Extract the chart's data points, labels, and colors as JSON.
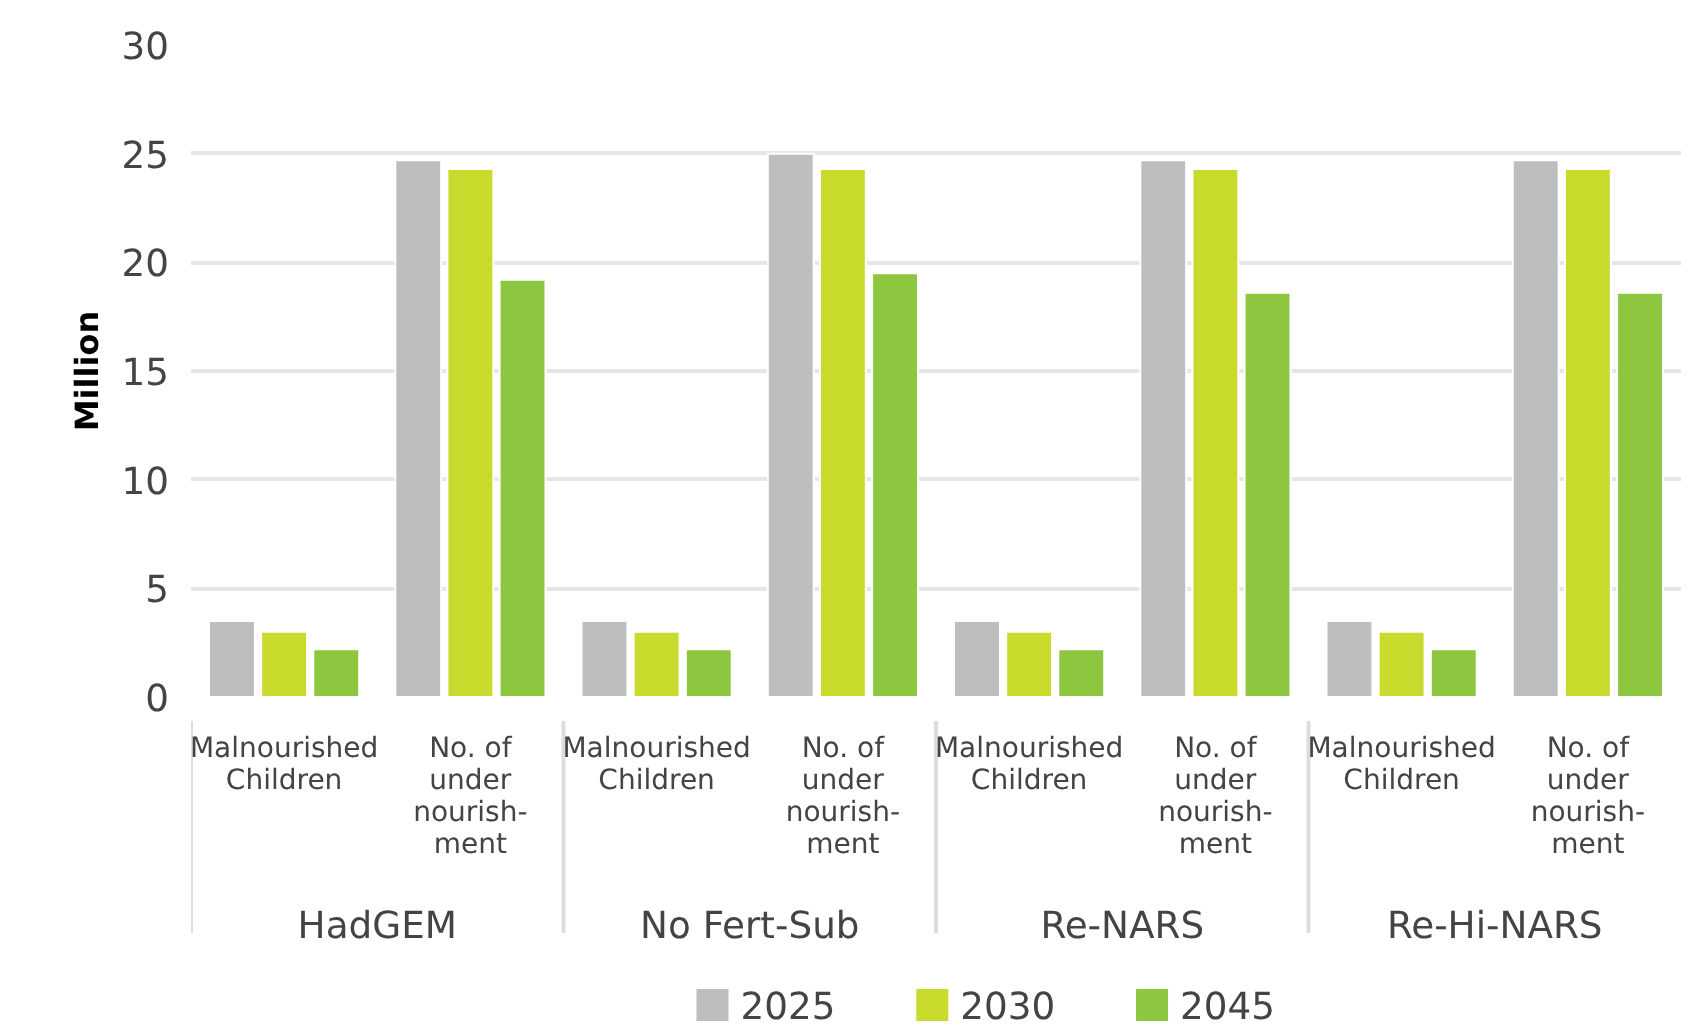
{
  "chart_data": {
    "type": "bar",
    "ylabel": "Million",
    "categories": [
      "Malnourished\nChildren",
      "No. of\nunder\nnourish-\nment",
      "Malnourished\nChildren",
      "No. of\nunder\nnourish-\nment",
      "Malnourished\nChildren",
      "No. of\nunder\nnourish-\nment",
      "Malnourished\nChildren",
      "No. of\nunder\nnourish-\nment"
    ],
    "series": [
      {
        "name": "2025",
        "color": "#bdbebf",
        "values": [
          3.5,
          24.7,
          3.5,
          25.0,
          3.5,
          24.7,
          3.5,
          24.7
        ]
      },
      {
        "name": "2030",
        "color": "#c8da2c",
        "values": [
          3.0,
          24.3,
          3.0,
          24.3,
          3.0,
          24.3,
          3.0,
          24.3
        ]
      },
      {
        "name": "2045",
        "color": "#8dc63f",
        "values": [
          2.2,
          19.2,
          2.2,
          19.5,
          2.2,
          18.6,
          2.2,
          18.6
        ]
      }
    ],
    "annotations": [
      "HadGEM",
      "No Fert-Sub",
      "Re-NARS",
      "Re-Hi-NARS"
    ],
    "ylim": [
      0,
      30
    ],
    "yticks": [
      0,
      5,
      10,
      15,
      20,
      25,
      30
    ],
    "grid": "y",
    "legend": "bottom"
  }
}
